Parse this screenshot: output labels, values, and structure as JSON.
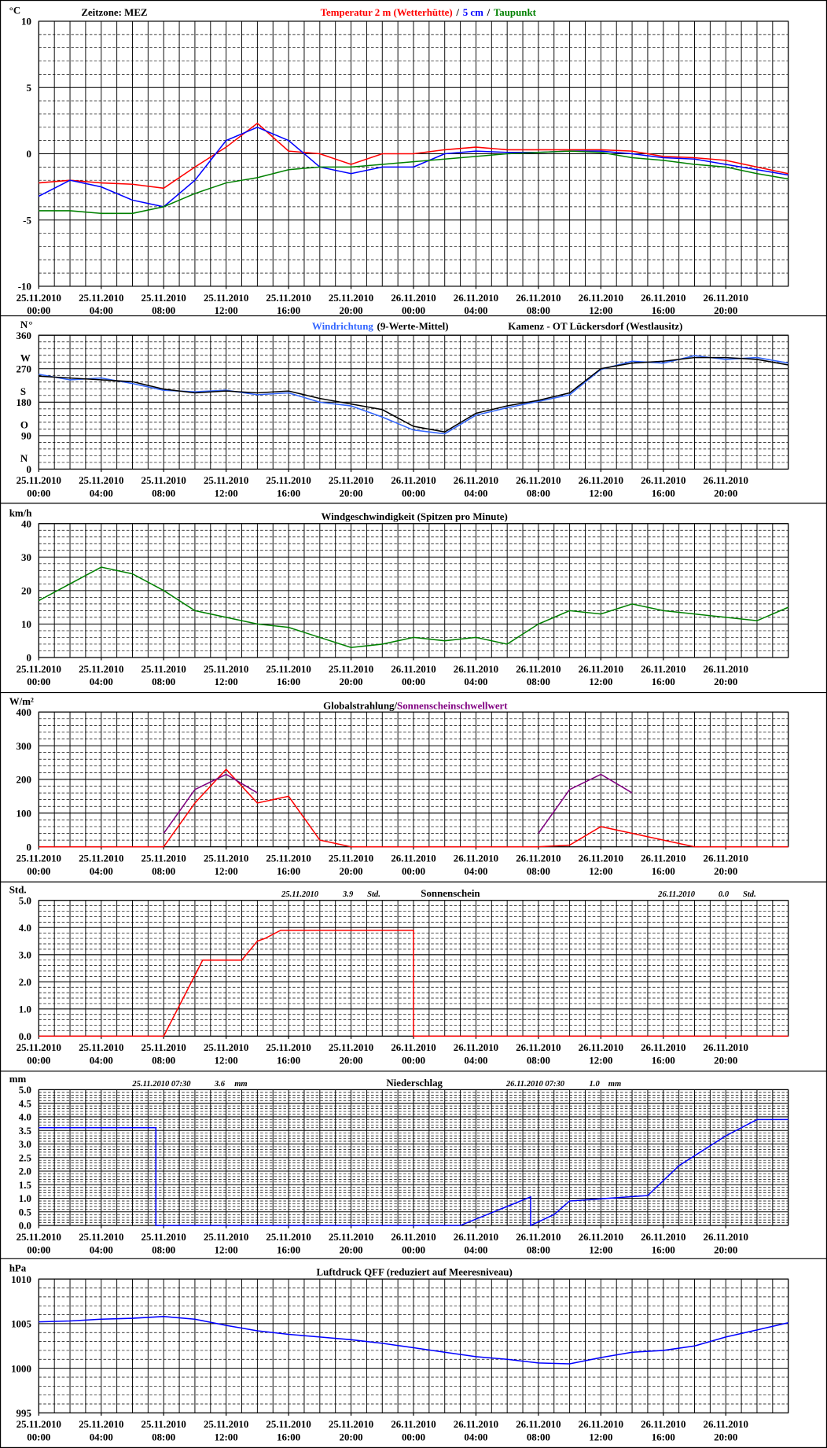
{
  "chart_data": [
    {
      "type": "line",
      "timezone": "Zeitzone: MEZ",
      "separator": "/",
      "unit": "°C",
      "x": [
        0,
        2,
        4,
        6,
        8,
        10,
        12,
        14,
        16,
        18,
        20,
        22,
        24,
        26,
        28,
        30,
        32,
        34,
        36,
        38,
        40,
        42,
        44,
        46,
        48
      ],
      "xlim": [
        0,
        48
      ],
      "xticks": [
        {
          "value": 0,
          "label": "00:00"
        },
        {
          "value": 4,
          "label": "04:00"
        },
        {
          "value": 8,
          "label": "08:00"
        },
        {
          "value": 12,
          "label": "12:00"
        },
        {
          "value": 16,
          "label": "16:00"
        },
        {
          "value": 20,
          "label": "20:00"
        },
        {
          "value": 24,
          "label": "00:00"
        },
        {
          "value": 28,
          "label": "04:00"
        },
        {
          "value": 32,
          "label": "08:00"
        },
        {
          "value": 36,
          "label": "12:00"
        },
        {
          "value": 40,
          "label": "16:00"
        },
        {
          "value": 44,
          "label": "20:00"
        }
      ],
      "xtick_dates": [
        "25.11.2010",
        "25.11.2010",
        "25.11.2010",
        "25.11.2010",
        "25.11.2010",
        "25.11.2010",
        "26.11.2010",
        "26.11.2010",
        "26.11.2010",
        "26.11.2010",
        "26.11.2010",
        "26.11.2010"
      ],
      "ylim": [
        -10,
        10
      ],
      "yticks": [
        -10,
        -5,
        0,
        5,
        10
      ],
      "series": [
        {
          "name": "Temperatur 2 m (Wetterhütte)",
          "color": "#ff0000",
          "values": [
            -2.2,
            -2.0,
            -2.2,
            -2.3,
            -2.6,
            -1.0,
            0.5,
            2.3,
            0.2,
            0.0,
            -0.8,
            0.0,
            0.0,
            0.3,
            0.5,
            0.3,
            0.3,
            0.3,
            0.3,
            0.2,
            -0.2,
            -0.3,
            -0.5,
            -1.0,
            -1.5
          ]
        },
        {
          "name": "5 cm",
          "color": "#0000ff",
          "values": [
            -3.2,
            -2.0,
            -2.5,
            -3.5,
            -4.0,
            -2.0,
            1.0,
            2.0,
            1.0,
            -1.0,
            -1.5,
            -1.0,
            -1.0,
            0.0,
            0.2,
            0.1,
            0.1,
            0.2,
            0.2,
            0.0,
            -0.3,
            -0.4,
            -0.8,
            -1.2,
            -1.6
          ]
        },
        {
          "name": "Taupunkt",
          "color": "#008000",
          "values": [
            -4.3,
            -4.3,
            -4.5,
            -4.5,
            -4.0,
            -3.0,
            -2.2,
            -1.8,
            -1.2,
            -1.0,
            -1.0,
            -0.8,
            -0.6,
            -0.4,
            -0.2,
            0.0,
            0.1,
            0.2,
            0.1,
            -0.3,
            -0.5,
            -0.8,
            -1.0,
            -1.5,
            -1.9
          ]
        }
      ]
    },
    {
      "type": "line",
      "title": "(9-Werte-Mittel)",
      "station": "Kamenz - OT Lückersdorf (Westlausitz)",
      "unit": "°",
      "compass": [
        "N",
        "O",
        "S",
        "W",
        "N"
      ],
      "x": [
        0,
        2,
        4,
        6,
        8,
        10,
        12,
        14,
        16,
        18,
        20,
        22,
        24,
        26,
        28,
        30,
        32,
        34,
        36,
        38,
        40,
        42,
        44,
        46,
        48
      ],
      "xlim": [
        0,
        48
      ],
      "xticks": [
        {
          "value": 0,
          "label": "00:00"
        },
        {
          "value": 4,
          "label": "04:00"
        },
        {
          "value": 8,
          "label": "08:00"
        },
        {
          "value": 12,
          "label": "12:00"
        },
        {
          "value": 16,
          "label": "16:00"
        },
        {
          "value": 20,
          "label": "20:00"
        },
        {
          "value": 24,
          "label": "00:00"
        },
        {
          "value": 28,
          "label": "04:00"
        },
        {
          "value": 32,
          "label": "08:00"
        },
        {
          "value": 36,
          "label": "12:00"
        },
        {
          "value": 40,
          "label": "16:00"
        },
        {
          "value": 44,
          "label": "20:00"
        }
      ],
      "xtick_dates": [
        "25.11.2010",
        "25.11.2010",
        "25.11.2010",
        "25.11.2010",
        "25.11.2010",
        "25.11.2010",
        "26.11.2010",
        "26.11.2010",
        "26.11.2010",
        "26.11.2010",
        "26.11.2010",
        "26.11.2010"
      ],
      "ylim": [
        0,
        360
      ],
      "yticks": [
        0,
        90,
        180,
        270,
        360
      ],
      "series": [
        {
          "name": "Windrichtung",
          "color": "#3366ff",
          "values": [
            255,
            240,
            245,
            230,
            212,
            208,
            212,
            200,
            205,
            180,
            170,
            140,
            105,
            95,
            145,
            165,
            182,
            200,
            268,
            290,
            285,
            305,
            295,
            300,
            285
          ]
        },
        {
          "color": "#000000",
          "values": [
            250,
            245,
            240,
            235,
            215,
            205,
            210,
            205,
            210,
            190,
            175,
            160,
            115,
            100,
            150,
            170,
            185,
            205,
            270,
            285,
            290,
            300,
            300,
            295,
            280
          ]
        }
      ]
    },
    {
      "type": "line",
      "title": "Windgeschwindigkeit (Spitzen pro Minute)",
      "unit": "km/h",
      "x": [
        0,
        2,
        4,
        6,
        8,
        10,
        12,
        14,
        16,
        18,
        20,
        22,
        24,
        26,
        28,
        30,
        32,
        34,
        36,
        38,
        40,
        42,
        44,
        46,
        48
      ],
      "xlim": [
        0,
        48
      ],
      "xticks": [
        {
          "value": 0,
          "label": "00:00"
        },
        {
          "value": 4,
          "label": "04:00"
        },
        {
          "value": 8,
          "label": "08:00"
        },
        {
          "value": 12,
          "label": "12:00"
        },
        {
          "value": 16,
          "label": "16:00"
        },
        {
          "value": 20,
          "label": "20:00"
        },
        {
          "value": 24,
          "label": "00:00"
        },
        {
          "value": 28,
          "label": "04:00"
        },
        {
          "value": 32,
          "label": "08:00"
        },
        {
          "value": 36,
          "label": "12:00"
        },
        {
          "value": 40,
          "label": "16:00"
        },
        {
          "value": 44,
          "label": "20:00"
        }
      ],
      "xtick_dates": [
        "25.11.2010",
        "25.11.2010",
        "25.11.2010",
        "25.11.2010",
        "25.11.2010",
        "25.11.2010",
        "26.11.2010",
        "26.11.2010",
        "26.11.2010",
        "26.11.2010",
        "26.11.2010",
        "26.11.2010"
      ],
      "ylim": [
        0,
        40
      ],
      "yticks": [
        0,
        10,
        20,
        30,
        40
      ],
      "series": [
        {
          "color": "#008000",
          "values": [
            17,
            22,
            27,
            25,
            20,
            14,
            12,
            10,
            9,
            6,
            3,
            4,
            6,
            5,
            6,
            4,
            10,
            14,
            13,
            16,
            14,
            13,
            12,
            11,
            15
          ]
        }
      ]
    },
    {
      "type": "line",
      "separator": "/",
      "unit": "W/m²",
      "x": [
        0,
        2,
        4,
        6,
        8,
        10,
        12,
        14,
        16,
        18,
        20,
        22,
        24,
        26,
        28,
        30,
        32,
        34,
        36,
        38,
        40,
        42,
        44,
        46,
        48
      ],
      "xlim": [
        0,
        48
      ],
      "xticks": [
        {
          "value": 0,
          "label": "00:00"
        },
        {
          "value": 4,
          "label": "04:00"
        },
        {
          "value": 8,
          "label": "08:00"
        },
        {
          "value": 12,
          "label": "12:00"
        },
        {
          "value": 16,
          "label": "16:00"
        },
        {
          "value": 20,
          "label": "20:00"
        },
        {
          "value": 24,
          "label": "00:00"
        },
        {
          "value": 28,
          "label": "04:00"
        },
        {
          "value": 32,
          "label": "08:00"
        },
        {
          "value": 36,
          "label": "12:00"
        },
        {
          "value": 40,
          "label": "16:00"
        },
        {
          "value": 44,
          "label": "20:00"
        }
      ],
      "xtick_dates": [
        "25.11.2010",
        "25.11.2010",
        "25.11.2010",
        "25.11.2010",
        "25.11.2010",
        "25.11.2010",
        "26.11.2010",
        "26.11.2010",
        "26.11.2010",
        "26.11.2010",
        "26.11.2010",
        "26.11.2010"
      ],
      "ylim": [
        0,
        400
      ],
      "yticks": [
        0,
        100,
        200,
        300,
        400
      ],
      "series": [
        {
          "name": "Globalstrahlung",
          "color": "#ff0000",
          "values": [
            0,
            0,
            0,
            0,
            0,
            130,
            230,
            130,
            150,
            20,
            0,
            0,
            0,
            0,
            0,
            0,
            0,
            5,
            60,
            40,
            20,
            0,
            0,
            0,
            0
          ]
        },
        {
          "name": "Sonnenscheinschwellwert",
          "color": "#800080",
          "values": [
            null,
            null,
            null,
            null,
            40,
            170,
            215,
            160,
            null,
            null,
            null,
            null,
            null,
            null,
            null,
            null,
            40,
            170,
            215,
            160,
            null,
            null,
            null,
            null,
            null
          ]
        }
      ]
    },
    {
      "type": "line",
      "title": "Sonnenschein",
      "unit": "Std.",
      "annotations": [
        "25.11.2010",
        "3.9",
        "Std.",
        "26.11.2010",
        "0.0",
        "Std."
      ],
      "x": [
        0,
        8,
        10.5,
        13,
        14,
        14.5,
        15.5,
        24,
        24,
        48
      ],
      "xlim": [
        0,
        48
      ],
      "xticks": [
        {
          "value": 0,
          "label": "00:00"
        },
        {
          "value": 4,
          "label": "04:00"
        },
        {
          "value": 8,
          "label": "08:00"
        },
        {
          "value": 12,
          "label": "12:00"
        },
        {
          "value": 16,
          "label": "16:00"
        },
        {
          "value": 20,
          "label": "20:00"
        },
        {
          "value": 24,
          "label": "00:00"
        },
        {
          "value": 28,
          "label": "04:00"
        },
        {
          "value": 32,
          "label": "08:00"
        },
        {
          "value": 36,
          "label": "12:00"
        },
        {
          "value": 40,
          "label": "16:00"
        },
        {
          "value": 44,
          "label": "20:00"
        }
      ],
      "xtick_dates": [
        "25.11.2010",
        "25.11.2010",
        "25.11.2010",
        "25.11.2010",
        "25.11.2010",
        "25.11.2010",
        "26.11.2010",
        "26.11.2010",
        "26.11.2010",
        "26.11.2010",
        "26.11.2010",
        "26.11.2010"
      ],
      "ylim": [
        0,
        5
      ],
      "yticks": [
        {
          "value": 0,
          "label": "0.0"
        },
        {
          "value": 1,
          "label": "1.0"
        },
        {
          "value": 2,
          "label": "2.0"
        },
        {
          "value": 3,
          "label": "3.0"
        },
        {
          "value": 4,
          "label": "4.0"
        },
        {
          "value": 5,
          "label": "5.0"
        }
      ],
      "series": [
        {
          "color": "#ff0000",
          "values": [
            0,
            0,
            2.8,
            2.8,
            3.5,
            3.6,
            3.9,
            3.9,
            0,
            0
          ]
        }
      ]
    },
    {
      "type": "line",
      "title": "Niederschlag",
      "unit": "mm",
      "annotations": [
        "25.11.2010 07:30",
        "3.6",
        "mm",
        "26.11.2010 07:30",
        "1.0",
        "mm"
      ],
      "x": [
        0,
        7.5,
        7.5,
        27,
        31.5,
        31.5,
        33,
        34,
        39,
        41,
        44,
        46,
        48
      ],
      "xlim": [
        0,
        48
      ],
      "xticks": [
        {
          "value": 0,
          "label": "00:00"
        },
        {
          "value": 4,
          "label": "04:00"
        },
        {
          "value": 8,
          "label": "08:00"
        },
        {
          "value": 12,
          "label": "12:00"
        },
        {
          "value": 16,
          "label": "16:00"
        },
        {
          "value": 20,
          "label": "20:00"
        },
        {
          "value": 24,
          "label": "00:00"
        },
        {
          "value": 28,
          "label": "04:00"
        },
        {
          "value": 32,
          "label": "08:00"
        },
        {
          "value": 36,
          "label": "12:00"
        },
        {
          "value": 40,
          "label": "16:00"
        },
        {
          "value": 44,
          "label": "20:00"
        }
      ],
      "xtick_dates": [
        "25.11.2010",
        "25.11.2010",
        "25.11.2010",
        "25.11.2010",
        "25.11.2010",
        "25.11.2010",
        "26.11.2010",
        "26.11.2010",
        "26.11.2010",
        "26.11.2010",
        "26.11.2010",
        "26.11.2010"
      ],
      "ylim": [
        0,
        5
      ],
      "yticks": [
        {
          "value": 0,
          "label": "0.0"
        },
        0.5,
        {
          "value": 1,
          "label": "1.0"
        },
        1.5,
        {
          "value": 2,
          "label": "2.0"
        },
        2.5,
        {
          "value": 3,
          "label": "3.0"
        },
        3.5,
        {
          "value": 4,
          "label": "4.0"
        },
        4.5,
        {
          "value": 5,
          "label": "5.0"
        }
      ],
      "series": [
        {
          "color": "#0000ff",
          "values": [
            3.6,
            3.6,
            0,
            0,
            1.05,
            0,
            0.4,
            0.9,
            1.1,
            2.2,
            3.3,
            3.9,
            3.9
          ]
        }
      ]
    },
    {
      "type": "line",
      "title": "Luftdruck QFF (reduziert auf Meeresniveau)",
      "unit": "hPa",
      "x": [
        0,
        2,
        4,
        6,
        8,
        10,
        12,
        14,
        16,
        18,
        20,
        22,
        24,
        26,
        28,
        30,
        32,
        34,
        36,
        38,
        40,
        42,
        44,
        46,
        48
      ],
      "xlim": [
        0,
        48
      ],
      "xticks": [
        {
          "value": 0,
          "label": "00:00"
        },
        {
          "value": 4,
          "label": "04:00"
        },
        {
          "value": 8,
          "label": "08:00"
        },
        {
          "value": 12,
          "label": "12:00"
        },
        {
          "value": 16,
          "label": "16:00"
        },
        {
          "value": 20,
          "label": "20:00"
        },
        {
          "value": 24,
          "label": "00:00"
        },
        {
          "value": 28,
          "label": "04:00"
        },
        {
          "value": 32,
          "label": "08:00"
        },
        {
          "value": 36,
          "label": "12:00"
        },
        {
          "value": 40,
          "label": "16:00"
        },
        {
          "value": 44,
          "label": "20:00"
        }
      ],
      "xtick_dates": [
        "25.11.2010",
        "25.11.2010",
        "25.11.2010",
        "25.11.2010",
        "25.11.2010",
        "25.11.2010",
        "26.11.2010",
        "26.11.2010",
        "26.11.2010",
        "26.11.2010",
        "26.11.2010",
        "26.11.2010"
      ],
      "ylim": [
        995,
        1010
      ],
      "yticks": [
        995,
        1000,
        1005,
        1010
      ],
      "series": [
        {
          "color": "#0000ff",
          "values": [
            1005.2,
            1005.3,
            1005.5,
            1005.6,
            1005.8,
            1005.5,
            1004.8,
            1004.2,
            1003.8,
            1003.5,
            1003.2,
            1002.8,
            1002.3,
            1001.8,
            1001.3,
            1001.0,
            1000.6,
            1000.5,
            1001.2,
            1001.8,
            1002.0,
            1002.5,
            1003.5,
            1004.3,
            1005.1
          ]
        }
      ]
    }
  ]
}
